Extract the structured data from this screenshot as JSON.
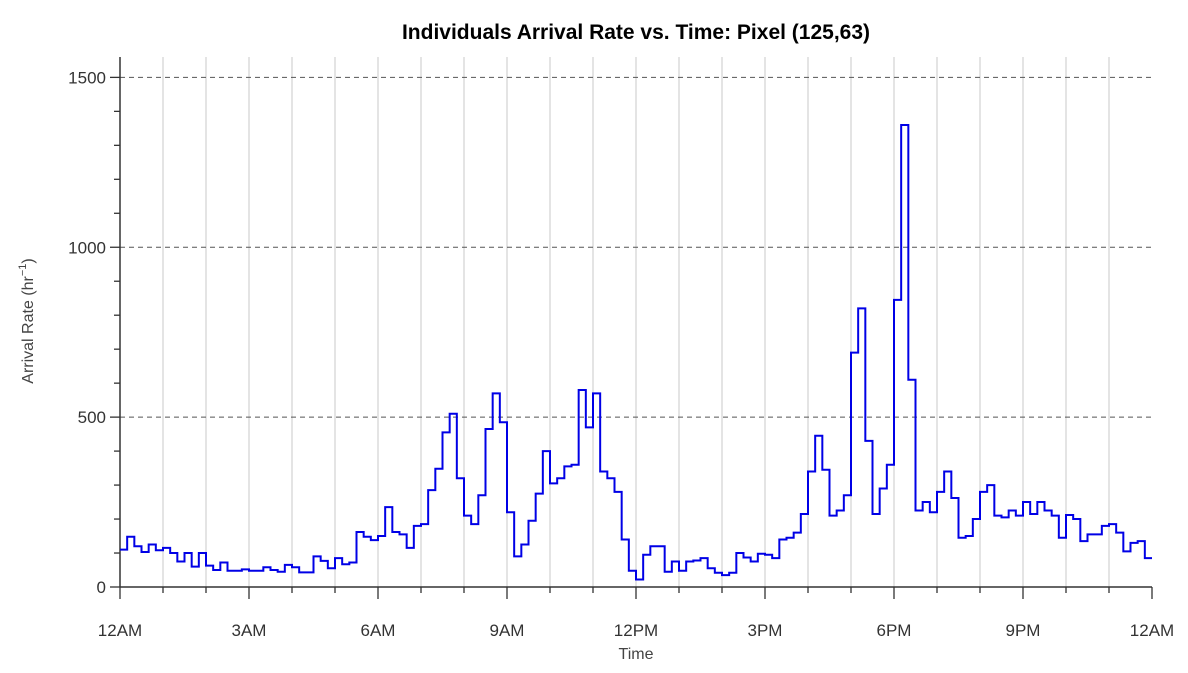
{
  "chart_data": {
    "type": "line",
    "step": true,
    "title": "Individuals Arrival Rate vs. Time: Pixel (125,63)",
    "xlabel": "Time",
    "ylabel": "Arrival Rate (hr",
    "ylabel_sup": "−1",
    "ylabel_close": ")",
    "ylim": [
      0,
      1560
    ],
    "yticks": [
      0,
      500,
      1000,
      1500
    ],
    "ytick_labels": [
      "0",
      "500",
      "1000",
      "1500"
    ],
    "ytick_minor_step": 100,
    "xlim_hours": [
      0,
      24
    ],
    "xticks_hours": [
      0,
      3,
      6,
      9,
      12,
      15,
      18,
      21,
      24
    ],
    "xtick_labels": [
      "12AM",
      "3AM",
      "6AM",
      "9AM",
      "12PM",
      "3PM",
      "6PM",
      "9PM",
      "12AM"
    ],
    "bin_minutes": 10,
    "grid": {
      "x_major_hourly": true,
      "y_dashed_at": [
        500,
        1000,
        1500
      ]
    },
    "colors": {
      "series": "#0000e6",
      "grid_vertical": "#c8c8c8",
      "grid_horizontal": "#555555",
      "axis": "#333333"
    },
    "series": [
      {
        "values": [
          110,
          148,
          120,
          103,
          125,
          108,
          115,
          100,
          75,
          100,
          60,
          100,
          63,
          50,
          72,
          48,
          48,
          52,
          48,
          48,
          58,
          50,
          45,
          65,
          58,
          43,
          43,
          90,
          77,
          55,
          85,
          67,
          72,
          162,
          148,
          138,
          150,
          235,
          162,
          155,
          115,
          180,
          185,
          285,
          348,
          455,
          510,
          320,
          210,
          185,
          270,
          465,
          570,
          485,
          220,
          90,
          125,
          195,
          275,
          400,
          305,
          320,
          355,
          360,
          580,
          470,
          570,
          340,
          320,
          280,
          140,
          48,
          22,
          95,
          120,
          120,
          45,
          75,
          48,
          75,
          78,
          85,
          55,
          42,
          35,
          42,
          100,
          87,
          75,
          98,
          95,
          85,
          140,
          145,
          160,
          215,
          340,
          445,
          345,
          210,
          225,
          270,
          690,
          820,
          430,
          215,
          290,
          360,
          845,
          1360,
          610,
          225,
          250,
          220,
          280,
          340,
          262,
          145,
          150,
          200,
          280,
          300,
          210,
          205,
          225,
          210,
          250,
          215,
          250,
          225,
          210,
          145,
          212,
          200,
          135,
          155,
          155,
          180,
          185,
          160,
          105,
          130,
          135,
          85
        ]
      }
    ]
  }
}
